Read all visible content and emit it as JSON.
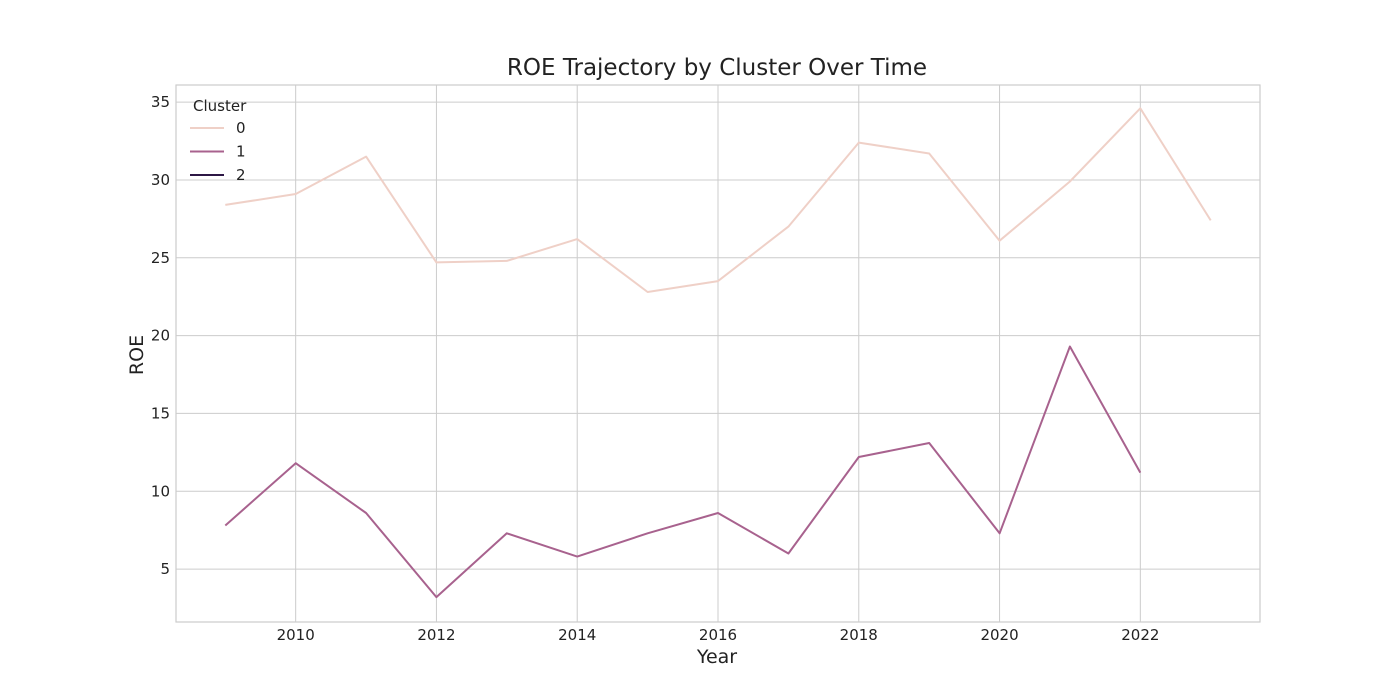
{
  "chart_data": {
    "type": "line",
    "title": "ROE Trajectory by Cluster Over Time",
    "xlabel": "Year",
    "ylabel": "ROE",
    "xlim": [
      2008.3,
      2023.7
    ],
    "ylim": [
      1.6,
      36.1
    ],
    "x_ticks": [
      2010,
      2012,
      2014,
      2016,
      2018,
      2020,
      2022
    ],
    "y_ticks": [
      5,
      10,
      15,
      20,
      25,
      30,
      35
    ],
    "grid": true,
    "legend": {
      "title": "Cluster",
      "position": "top-left"
    },
    "series": [
      {
        "name": "0",
        "color": "#efd0c7",
        "x": [
          2009,
          2010,
          2011,
          2012,
          2013,
          2014,
          2015,
          2016,
          2017,
          2018,
          2019,
          2020,
          2021,
          2022,
          2023
        ],
        "values": [
          28.4,
          29.1,
          31.5,
          24.7,
          24.8,
          26.2,
          22.8,
          23.5,
          27.0,
          32.4,
          31.7,
          26.1,
          29.9,
          34.6,
          27.4
        ]
      },
      {
        "name": "1",
        "color": "#a8628e",
        "x": [
          2009,
          2010,
          2011,
          2012,
          2013,
          2014,
          2015,
          2016,
          2017,
          2018,
          2019,
          2020,
          2021,
          2022
        ],
        "values": [
          7.8,
          11.8,
          8.6,
          3.2,
          7.3,
          5.8,
          7.3,
          8.6,
          6.0,
          12.2,
          13.1,
          7.3,
          19.3,
          11.2
        ]
      },
      {
        "name": "2",
        "color": "#2d1745",
        "x": [],
        "values": []
      }
    ]
  }
}
